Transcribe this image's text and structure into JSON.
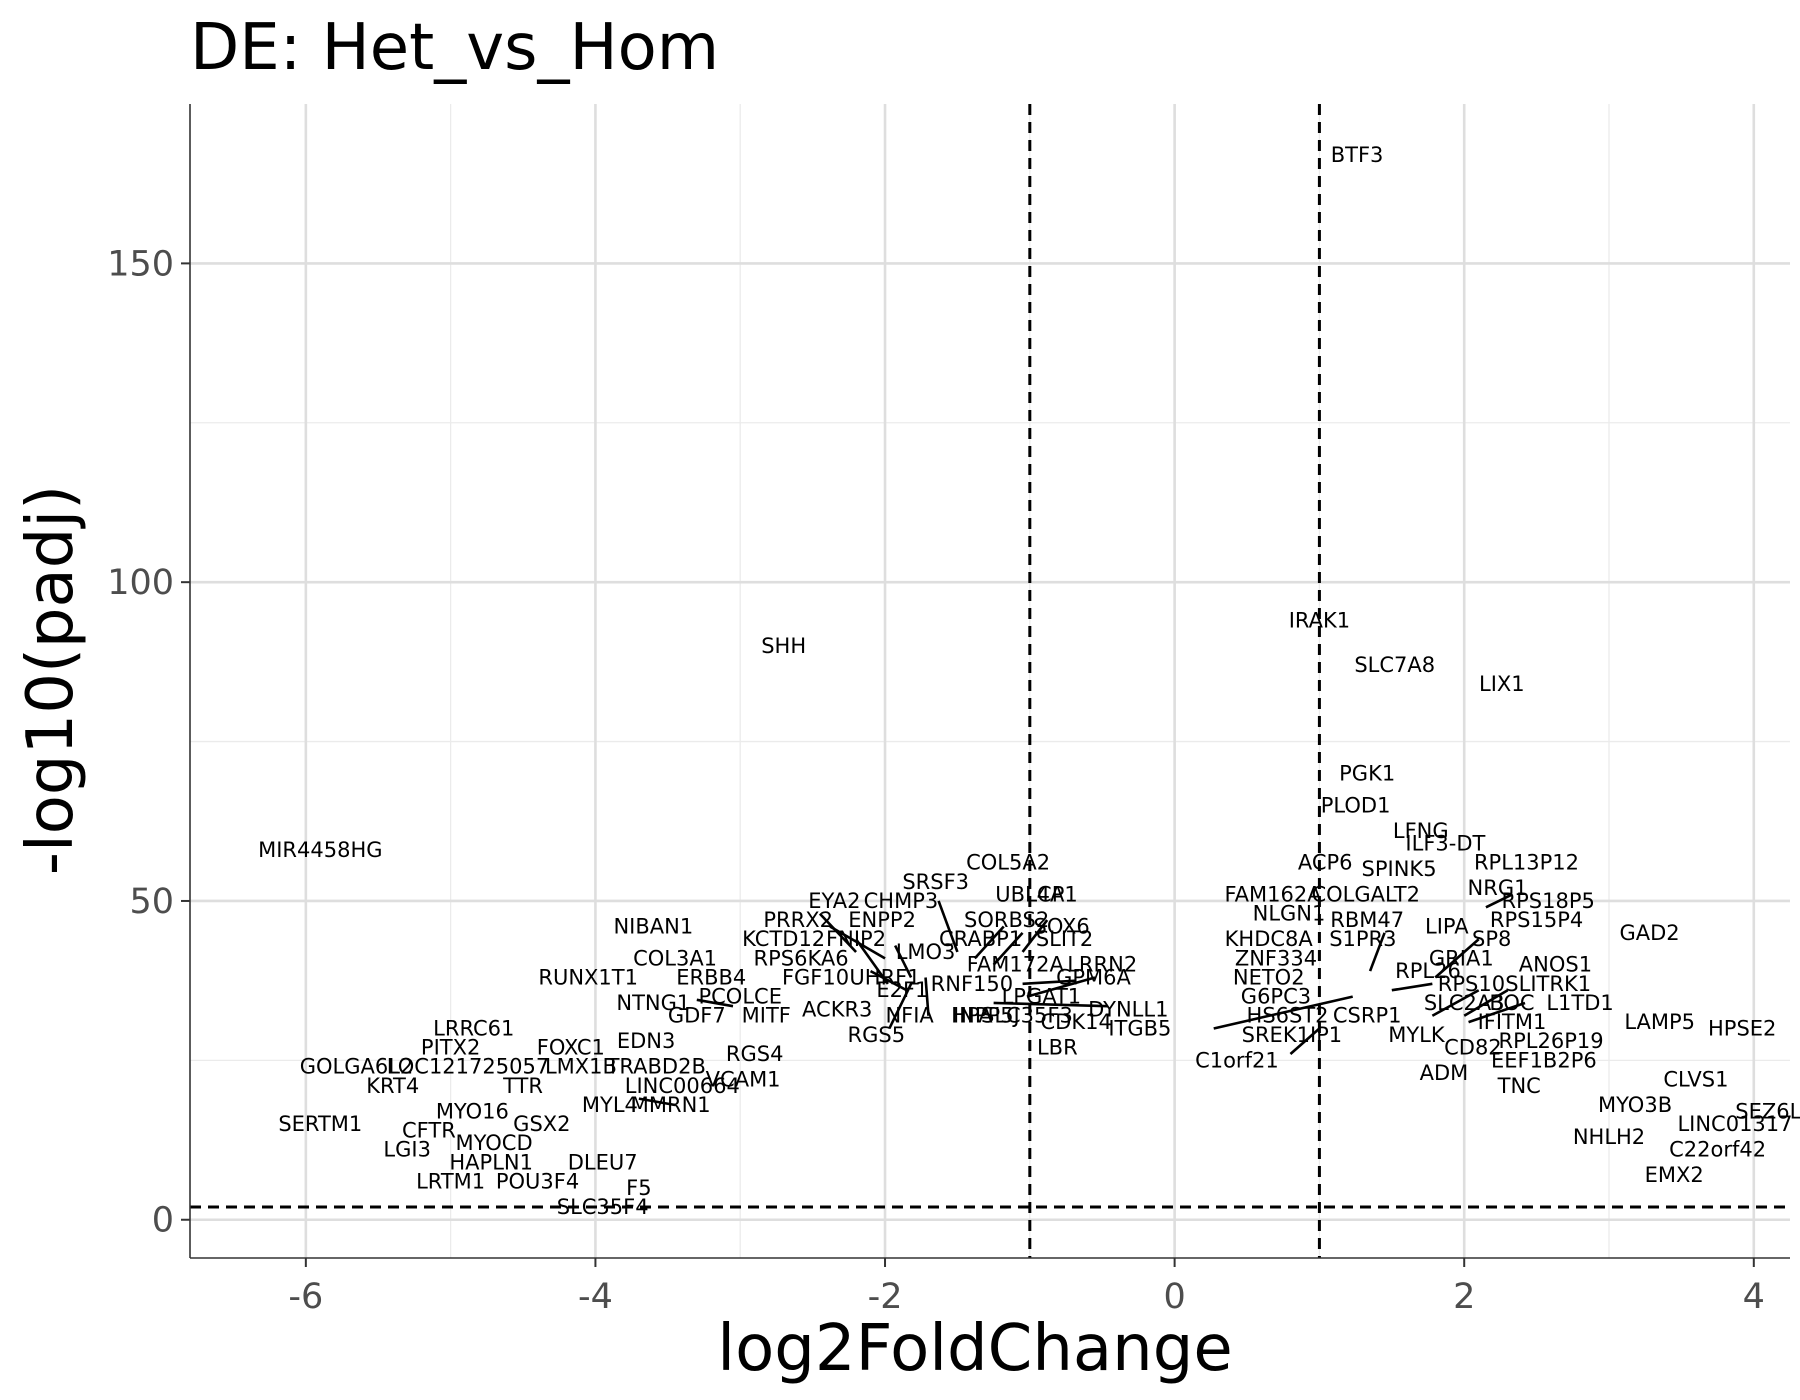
{
  "chart_data": {
    "type": "scatter",
    "title": "DE: Het_vs_Hom",
    "xlabel": "log2FoldChange",
    "ylabel": "-log10(padj)",
    "xlim": [
      -6.8,
      4.25
    ],
    "ylim": [
      -6,
      175
    ],
    "x_ticks": [
      -6,
      -4,
      -2,
      0,
      2,
      4
    ],
    "y_ticks": [
      0,
      50,
      100,
      150
    ],
    "grid": true,
    "legend": "none",
    "thresholds": {
      "log2fc": [
        -1,
        1
      ],
      "neg_log10_padj": 2
    },
    "points": [
      {
        "label": "BTF3",
        "x": 1.26,
        "y": 167
      },
      {
        "label": "IRAK1",
        "x": 1.0,
        "y": 94
      },
      {
        "label": "SLC7A8",
        "x": 1.52,
        "y": 87
      },
      {
        "label": "LIX1",
        "x": 2.26,
        "y": 84
      },
      {
        "label": "SHH",
        "x": -2.7,
        "y": 90
      },
      {
        "label": "MIR4458HG",
        "x": -5.9,
        "y": 58
      },
      {
        "label": "PGK1",
        "x": 1.33,
        "y": 70
      },
      {
        "label": "PLOD1",
        "x": 1.25,
        "y": 65
      },
      {
        "label": "LFNG",
        "x": 1.7,
        "y": 61
      },
      {
        "label": "ILF3-DT",
        "x": 1.87,
        "y": 59
      },
      {
        "label": "RPL13P12",
        "x": 2.43,
        "y": 56
      },
      {
        "label": "ACP6",
        "x": 1.04,
        "y": 56
      },
      {
        "label": "SPINK5",
        "x": 1.55,
        "y": 55
      },
      {
        "label": "COL5A2",
        "x": -1.15,
        "y": 56
      },
      {
        "label": "SRSF3",
        "x": -1.65,
        "y": 53
      },
      {
        "label": "UBL4A",
        "x": -1.0,
        "y": 51
      },
      {
        "label": "LCP1",
        "x": -0.85,
        "y": 51
      },
      {
        "label": "FAM162A",
        "x": 0.68,
        "y": 51
      },
      {
        "label": "COLGALT2",
        "x": 1.32,
        "y": 51
      },
      {
        "label": "NRG1",
        "x": 2.23,
        "y": 52
      },
      {
        "label": "RPS18P5",
        "x": 2.58,
        "y": 50
      },
      {
        "label": "EYA2",
        "x": -2.35,
        "y": 50
      },
      {
        "label": "CHMP3",
        "x": -1.89,
        "y": 50
      },
      {
        "label": "SORBS2",
        "x": -1.16,
        "y": 47
      },
      {
        "label": "NLGN1",
        "x": 0.79,
        "y": 48
      },
      {
        "label": "RBM47",
        "x": 1.33,
        "y": 47
      },
      {
        "label": "RPS15P4",
        "x": 2.5,
        "y": 47
      },
      {
        "label": "PRRX2",
        "x": -2.6,
        "y": 47
      },
      {
        "label": "ENPP2",
        "x": -2.02,
        "y": 47
      },
      {
        "label": "SOX6",
        "x": -0.78,
        "y": 46
      },
      {
        "label": "LIPA",
        "x": 1.88,
        "y": 46
      },
      {
        "label": "GAD2",
        "x": 3.28,
        "y": 45
      },
      {
        "label": "NIBAN1",
        "x": -3.6,
        "y": 46
      },
      {
        "label": "CRABP1",
        "x": -1.34,
        "y": 44
      },
      {
        "label": "KHDC8A",
        "x": 0.65,
        "y": 44
      },
      {
        "label": "S1PR3",
        "x": 1.3,
        "y": 44
      },
      {
        "label": "SP8",
        "x": 2.19,
        "y": 44
      },
      {
        "label": "KCTD12",
        "x": -2.7,
        "y": 44
      },
      {
        "label": "FNIP2",
        "x": -2.2,
        "y": 44
      },
      {
        "label": "SLIT2",
        "x": -0.76,
        "y": 44
      },
      {
        "label": "LMO3",
        "x": -1.72,
        "y": 42
      },
      {
        "label": "COL3A1",
        "x": -3.45,
        "y": 41
      },
      {
        "label": "RPS6KA6",
        "x": -2.58,
        "y": 41
      },
      {
        "label": "ZNF334",
        "x": 0.7,
        "y": 41
      },
      {
        "label": "GRIA1",
        "x": 1.98,
        "y": 41
      },
      {
        "label": "ANOS1",
        "x": 2.63,
        "y": 40
      },
      {
        "label": "FAM172A",
        "x": -1.1,
        "y": 40
      },
      {
        "label": "LRRN2",
        "x": -0.5,
        "y": 40
      },
      {
        "label": "RPL26",
        "x": 1.75,
        "y": 39
      },
      {
        "label": "RUNX1T1",
        "x": -4.05,
        "y": 38
      },
      {
        "label": "ERBB4",
        "x": -3.2,
        "y": 38
      },
      {
        "label": "FGF10",
        "x": -2.48,
        "y": 38
      },
      {
        "label": "UHRF1",
        "x": -2.0,
        "y": 38
      },
      {
        "label": "NETO2",
        "x": 0.65,
        "y": 38
      },
      {
        "label": "GPM6A",
        "x": -0.56,
        "y": 38
      },
      {
        "label": "RPS10",
        "x": 2.05,
        "y": 37
      },
      {
        "label": "SLITRK1",
        "x": 2.58,
        "y": 37
      },
      {
        "label": "RNF150",
        "x": -1.4,
        "y": 37
      },
      {
        "label": "E2F1",
        "x": -1.88,
        "y": 36
      },
      {
        "label": "PCOLCE",
        "x": -3.0,
        "y": 35
      },
      {
        "label": "NTNG1",
        "x": -3.6,
        "y": 34
      },
      {
        "label": "G6PC3",
        "x": 0.7,
        "y": 35
      },
      {
        "label": "SLC2A3",
        "x": 2.0,
        "y": 34
      },
      {
        "label": "BOC",
        "x": 2.33,
        "y": 34
      },
      {
        "label": "L1TD1",
        "x": 2.8,
        "y": 34
      },
      {
        "label": "LPGAT1",
        "x": -0.92,
        "y": 35
      },
      {
        "label": "DYNLL1",
        "x": -0.32,
        "y": 33
      },
      {
        "label": "ACKR3",
        "x": -2.33,
        "y": 33
      },
      {
        "label": "NFIA",
        "x": -1.83,
        "y": 32
      },
      {
        "label": "HPA",
        "x": -1.4,
        "y": 32
      },
      {
        "label": "INPP5J",
        "x": -1.3,
        "y": 32
      },
      {
        "label": "SLC35F3",
        "x": -1.02,
        "y": 32
      },
      {
        "label": "MITF",
        "x": -2.82,
        "y": 32
      },
      {
        "label": "GDF7",
        "x": -3.3,
        "y": 32
      },
      {
        "label": "CSRP1",
        "x": 1.33,
        "y": 32
      },
      {
        "label": "HS6ST2",
        "x": 0.78,
        "y": 32
      },
      {
        "label": "IFITM1",
        "x": 2.33,
        "y": 31
      },
      {
        "label": "LAMP5",
        "x": 3.35,
        "y": 31
      },
      {
        "label": "HPSE2",
        "x": 3.92,
        "y": 30
      },
      {
        "label": "CDK14",
        "x": -0.68,
        "y": 31
      },
      {
        "label": "ITGB5",
        "x": -0.24,
        "y": 30
      },
      {
        "label": "SREK1IP1",
        "x": 0.81,
        "y": 29
      },
      {
        "label": "LRRC61",
        "x": -4.84,
        "y": 30
      },
      {
        "label": "RGS5",
        "x": -2.06,
        "y": 29
      },
      {
        "label": "MYLK",
        "x": 1.67,
        "y": 29
      },
      {
        "label": "RPL26P19",
        "x": 2.6,
        "y": 28
      },
      {
        "label": "EDN3",
        "x": -3.65,
        "y": 28
      },
      {
        "label": "PITX2",
        "x": -5.0,
        "y": 27
      },
      {
        "label": "FOXC1",
        "x": -4.17,
        "y": 27
      },
      {
        "label": "CD82",
        "x": 2.06,
        "y": 27
      },
      {
        "label": "LBR",
        "x": -0.81,
        "y": 27
      },
      {
        "label": "C1orf21",
        "x": 0.43,
        "y": 25
      },
      {
        "label": "RGS4",
        "x": -2.9,
        "y": 26
      },
      {
        "label": "EEF1B2P6",
        "x": 2.55,
        "y": 25
      },
      {
        "label": "GOLGA6L2",
        "x": -5.65,
        "y": 24
      },
      {
        "label": "LOC121725057",
        "x": -4.88,
        "y": 24
      },
      {
        "label": "LMX1B",
        "x": -4.1,
        "y": 24
      },
      {
        "label": "TRABD2B",
        "x": -3.58,
        "y": 24
      },
      {
        "label": "ADM",
        "x": 1.86,
        "y": 23
      },
      {
        "label": "VCAM1",
        "x": -2.98,
        "y": 22
      },
      {
        "label": "TNC",
        "x": 2.38,
        "y": 21
      },
      {
        "label": "CLVS1",
        "x": 3.6,
        "y": 22
      },
      {
        "label": "KRT4",
        "x": -5.4,
        "y": 21
      },
      {
        "label": "TTR",
        "x": -4.5,
        "y": 21
      },
      {
        "label": "LINC00664",
        "x": -3.4,
        "y": 21
      },
      {
        "label": "MYO3B",
        "x": 3.18,
        "y": 18
      },
      {
        "label": "MMRN1",
        "x": -3.48,
        "y": 18
      },
      {
        "label": "MYL4",
        "x": -3.9,
        "y": 18
      },
      {
        "label": "MYO16",
        "x": -4.85,
        "y": 17
      },
      {
        "label": "SEZ6L",
        "x": 4.1,
        "y": 17
      },
      {
        "label": "GSX2",
        "x": -4.37,
        "y": 15
      },
      {
        "label": "SERTM1",
        "x": -5.9,
        "y": 15
      },
      {
        "label": "LINC01317",
        "x": 3.87,
        "y": 15
      },
      {
        "label": "CFTR",
        "x": -5.15,
        "y": 14
      },
      {
        "label": "NHLH2",
        "x": 3.0,
        "y": 13
      },
      {
        "label": "MYOCD",
        "x": -4.7,
        "y": 12
      },
      {
        "label": "LGI3",
        "x": -5.3,
        "y": 11
      },
      {
        "label": "C22orf42",
        "x": 3.75,
        "y": 11
      },
      {
        "label": "HAPLN1",
        "x": -4.72,
        "y": 9
      },
      {
        "label": "DLEU7",
        "x": -3.95,
        "y": 9
      },
      {
        "label": "EMX2",
        "x": 3.45,
        "y": 7
      },
      {
        "label": "LRTM1",
        "x": -5.0,
        "y": 6
      },
      {
        "label": "POU3F4",
        "x": -4.4,
        "y": 6
      },
      {
        "label": "F5",
        "x": -3.7,
        "y": 5
      },
      {
        "label": "SLC35F4",
        "x": -3.95,
        "y": 2
      }
    ],
    "leaders": [
      [
        [
          -2.45,
          48
        ],
        [
          -2.2,
          42
        ]
      ],
      [
        [
          -2.38,
          46
        ],
        [
          -2.0,
          41
        ]
      ],
      [
        [
          -2.2,
          44
        ],
        [
          -1.98,
          37
        ]
      ],
      [
        [
          -2.1,
          39
        ],
        [
          -1.85,
          36
        ]
      ],
      [
        [
          -1.93,
          43
        ],
        [
          -1.82,
          38
        ]
      ],
      [
        [
          -1.82,
          37
        ],
        [
          -1.97,
          30
        ]
      ],
      [
        [
          -1.72,
          38
        ],
        [
          -1.7,
          32
        ]
      ],
      [
        [
          -1.63,
          50
        ],
        [
          -1.5,
          42
        ]
      ],
      [
        [
          -1.38,
          41
        ],
        [
          -1.18,
          46
        ]
      ],
      [
        [
          -1.25,
          40
        ],
        [
          -1.05,
          45
        ]
      ],
      [
        [
          -1.05,
          42
        ],
        [
          -0.88,
          47
        ]
      ],
      [
        [
          -1.05,
          37
        ],
        [
          -0.68,
          37.5
        ]
      ],
      [
        [
          -1.02,
          35
        ],
        [
          -0.55,
          38
        ]
      ],
      [
        [
          -1.25,
          34
        ],
        [
          -0.46,
          33.5
        ]
      ],
      [
        [
          -3.3,
          34.5
        ],
        [
          -3.05,
          33.5
        ]
      ],
      [
        [
          -3.7,
          19
        ],
        [
          -3.45,
          18
        ]
      ],
      [
        [
          0.27,
          30
        ],
        [
          1.23,
          35
        ]
      ],
      [
        [
          0.8,
          26
        ],
        [
          1.0,
          30
        ]
      ],
      [
        [
          1.35,
          39
        ],
        [
          1.45,
          45
        ]
      ],
      [
        [
          1.5,
          36
        ],
        [
          1.78,
          37
        ]
      ],
      [
        [
          1.8,
          38
        ],
        [
          2.1,
          44
        ]
      ],
      [
        [
          1.78,
          32
        ],
        [
          2.1,
          36
        ]
      ],
      [
        [
          2.0,
          32
        ],
        [
          2.3,
          36
        ]
      ],
      [
        [
          2.03,
          31
        ],
        [
          2.42,
          34
        ]
      ],
      [
        [
          2.15,
          49
        ],
        [
          2.33,
          51
        ]
      ]
    ]
  }
}
